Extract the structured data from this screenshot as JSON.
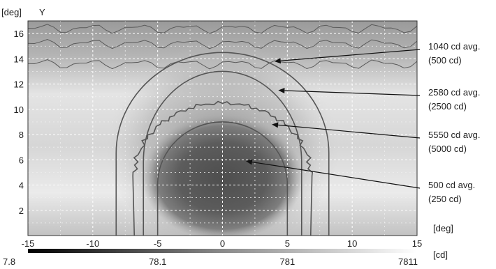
{
  "chart_data": {
    "type": "heatmap",
    "y_unit_label": "[deg]",
    "y_axis_name": "Y",
    "x_unit_label": "[deg]",
    "colorbar_unit_label": "[cd]",
    "xlim": [
      -15,
      15
    ],
    "ylim": [
      0,
      17
    ],
    "x_ticks": [
      -15,
      -10,
      -5,
      0,
      5,
      10,
      15
    ],
    "y_ticks": [
      2,
      4,
      6,
      8,
      10,
      12,
      14,
      16
    ],
    "grid": true,
    "colorbar": {
      "scale": "log",
      "colormap": "grayscale",
      "min": 7.8,
      "max": 7811,
      "ticks": [
        {
          "value": 7.8,
          "label": "7.8"
        },
        {
          "value": 78.1,
          "label": "78.1"
        },
        {
          "value": 781,
          "label": "781"
        },
        {
          "value": 7811,
          "label": "7811"
        }
      ]
    },
    "contours": [
      {
        "avg_label": "1040 cd avg.",
        "level_label": "(500 cd)",
        "cx": 0,
        "bottom": 0,
        "top": 14.5,
        "half_width": 8.2
      },
      {
        "avg_label": "2580 cd avg.",
        "level_label": "(2500 cd)",
        "cx": 0,
        "bottom": 0,
        "top": 13.0,
        "half_width": 6.1
      },
      {
        "avg_label": "5550 cd avg.",
        "level_label": "(5000 cd)",
        "cx": 0,
        "bottom": 0,
        "top": 10.5,
        "half_width": 6.8
      },
      {
        "avg_label": "500 cd avg.",
        "level_label": "(250 cd)",
        "cx": 0,
        "bottom": 0,
        "top": 9.0,
        "half_width": 5.0
      }
    ],
    "arrow_targets": [
      {
        "x": 4.0,
        "y": 13.8
      },
      {
        "x": 4.3,
        "y": 11.5
      },
      {
        "x": 3.8,
        "y": 8.8
      },
      {
        "x": 1.8,
        "y": 5.9
      }
    ],
    "colors": {
      "contour": "#555555",
      "arrow": "#111111",
      "grid": "#ffffff"
    }
  }
}
